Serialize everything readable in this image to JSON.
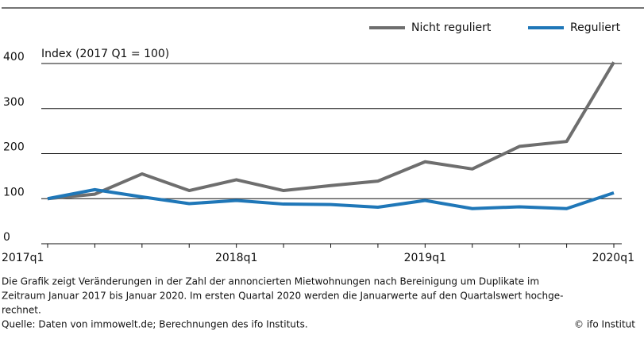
{
  "chart_data": {
    "type": "line",
    "y_label": "Index (2017 Q1 = 100)",
    "categories": [
      "2017q1",
      null,
      null,
      null,
      "2018q1",
      null,
      null,
      null,
      "2019q1",
      null,
      null,
      null,
      "2020q1"
    ],
    "series": [
      {
        "name": "Nicht reguliert",
        "color": "#6e6e6e",
        "values": [
          100,
          110,
          155,
          118,
          142,
          118,
          129,
          139,
          182,
          166,
          216,
          227,
          403
        ]
      },
      {
        "name": "Reguliert",
        "color": "#1f77b8",
        "values": [
          100,
          120,
          104,
          89,
          96,
          88,
          87,
          81,
          96,
          78,
          82,
          78,
          113
        ]
      }
    ],
    "ylim": [
      0,
      400
    ],
    "yticks": [
      0,
      100,
      200,
      300,
      400
    ],
    "grid": true,
    "legend": "top-right"
  },
  "footer": {
    "note_lines": [
      "Die Grafik zeigt Veränderungen in der Zahl der annoncierten Mietwohnungen nach Bereinigung um Duplikate im",
      "Zeitraum Januar 2017 bis Januar 2020. Im ersten Quartal 2020 werden die Januarwerte auf den Quartalswert hochge-",
      "rechnet."
    ],
    "source": "Quelle: Daten von immowelt.de; Berechnungen des ifo Instituts.",
    "copyright": "© ifo Institut"
  }
}
